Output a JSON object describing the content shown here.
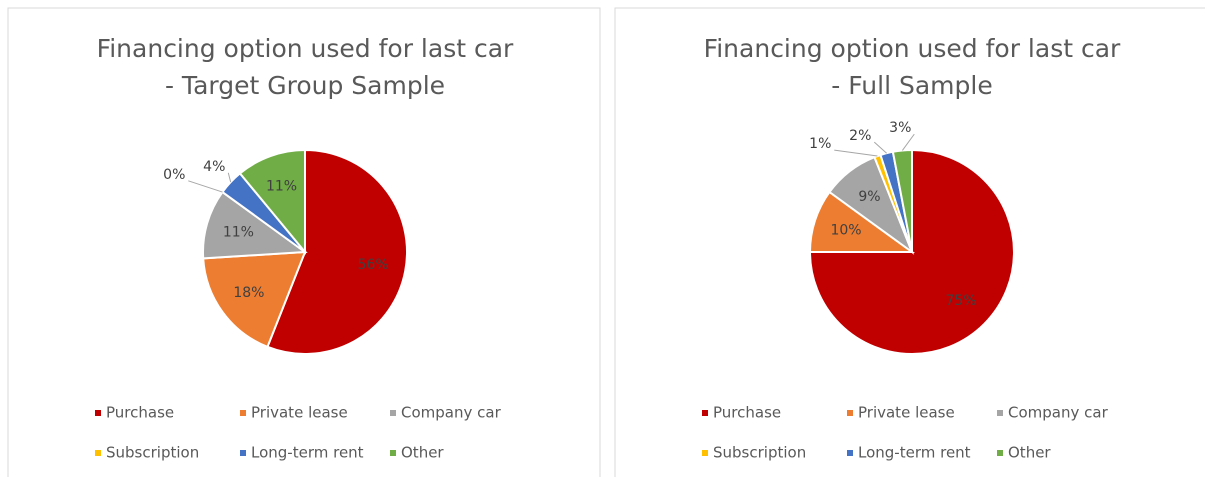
{
  "chart_data": [
    {
      "type": "pie",
      "title": [
        "Financing option used for last car",
        "- Target Group Sample"
      ],
      "categories": [
        "Purchase",
        "Private lease",
        "Company car",
        "Subscription",
        "Long-term rent",
        "Other"
      ],
      "values": [
        56,
        18,
        11,
        0,
        4,
        11
      ],
      "value_labels": [
        "56%",
        "18%",
        "11%",
        "0%",
        "4%",
        "11%"
      ],
      "colors": [
        "#c00000",
        "#ed7d31",
        "#a5a5a5",
        "#ffc000",
        "#4472c4",
        "#70ad47"
      ]
    },
    {
      "type": "pie",
      "title": [
        "Financing option used for last car",
        "- Full Sample"
      ],
      "categories": [
        "Purchase",
        "Private lease",
        "Company car",
        "Subscription",
        "Long-term rent",
        "Other"
      ],
      "values": [
        75,
        10,
        9,
        1,
        2,
        3
      ],
      "value_labels": [
        "75%",
        "10%",
        "9%",
        "1%",
        "2%",
        "3%"
      ],
      "colors": [
        "#c00000",
        "#ed7d31",
        "#a5a5a5",
        "#ffc000",
        "#4472c4",
        "#70ad47"
      ]
    }
  ]
}
